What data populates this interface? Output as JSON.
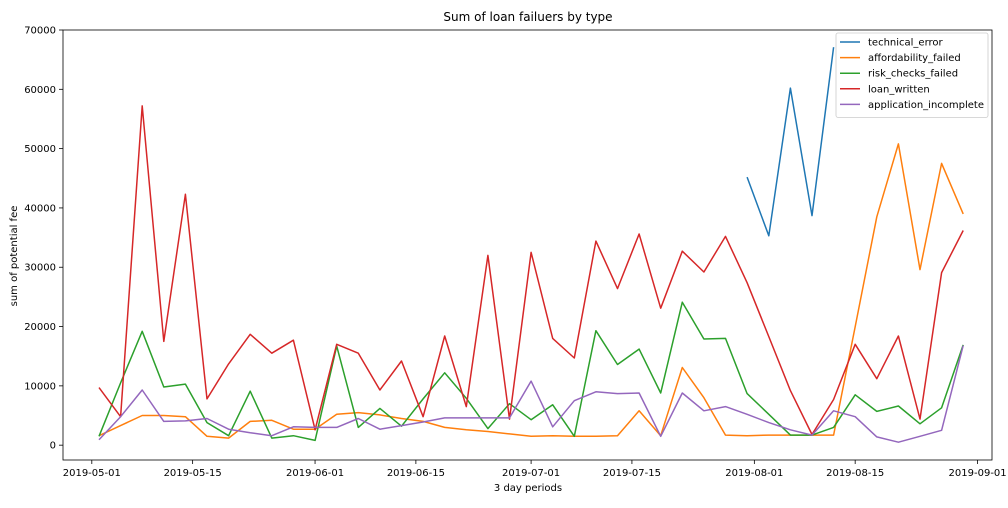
{
  "chart_data": {
    "type": "line",
    "title": "Sum of loan failuers by type",
    "xlabel": "3 day periods",
    "ylabel": "sum of potential fee",
    "ylim": [
      -2500,
      70000
    ],
    "xlim": [
      "2019-04-27",
      "2019-09-03"
    ],
    "yticks": [
      0,
      10000,
      20000,
      30000,
      40000,
      50000,
      60000,
      70000
    ],
    "xticks": [
      "2019-05-01",
      "2019-05-15",
      "2019-06-01",
      "2019-06-15",
      "2019-07-01",
      "2019-07-15",
      "2019-08-01",
      "2019-08-15",
      "2019-09-01"
    ],
    "legend_position": "top-right",
    "grid": false,
    "x": [
      "2019-05-02",
      "2019-05-05",
      "2019-05-08",
      "2019-05-11",
      "2019-05-14",
      "2019-05-17",
      "2019-05-20",
      "2019-05-23",
      "2019-05-26",
      "2019-05-29",
      "2019-06-01",
      "2019-06-04",
      "2019-06-07",
      "2019-06-10",
      "2019-06-13",
      "2019-06-16",
      "2019-06-19",
      "2019-06-22",
      "2019-06-25",
      "2019-06-28",
      "2019-07-01",
      "2019-07-04",
      "2019-07-07",
      "2019-07-10",
      "2019-07-13",
      "2019-07-16",
      "2019-07-19",
      "2019-07-22",
      "2019-07-25",
      "2019-07-28",
      "2019-07-31",
      "2019-08-03",
      "2019-08-06",
      "2019-08-09",
      "2019-08-12",
      "2019-08-15",
      "2019-08-18",
      "2019-08-21",
      "2019-08-24",
      "2019-08-27",
      "2019-08-30"
    ],
    "series": [
      {
        "name": "technical_error",
        "color": "#1f77b4",
        "values": [
          null,
          null,
          null,
          null,
          null,
          null,
          null,
          null,
          null,
          null,
          null,
          null,
          null,
          null,
          null,
          null,
          null,
          null,
          null,
          null,
          null,
          null,
          null,
          null,
          null,
          null,
          null,
          null,
          null,
          null,
          45200,
          35300,
          60200,
          38700,
          67100,
          null,
          null,
          null,
          null,
          null,
          null
        ]
      },
      {
        "name": "affordability_failed",
        "color": "#ff7f0e",
        "values": [
          1600,
          3300,
          5000,
          5000,
          4800,
          1500,
          1200,
          4000,
          4200,
          2700,
          2700,
          5200,
          5500,
          5100,
          4500,
          4000,
          3000,
          2600,
          2300,
          1900,
          1500,
          1600,
          1500,
          1500,
          1600,
          5800,
          1600,
          13100,
          8000,
          1700,
          1600,
          1700,
          1700,
          1700,
          1700,
          20000,
          38500,
          50800,
          29600,
          47500,
          39000
        ]
      },
      {
        "name": "risk_checks_failed",
        "color": "#2ca02c",
        "values": [
          1500,
          10500,
          19200,
          9800,
          10300,
          3800,
          1600,
          9100,
          1200,
          1600,
          800,
          16700,
          3000,
          6200,
          3200,
          7800,
          12200,
          7900,
          2800,
          7000,
          4300,
          6800,
          1500,
          19300,
          13600,
          16200,
          8800,
          24100,
          17900,
          18000,
          8700,
          5200,
          1700,
          1700,
          3000,
          8500,
          5700,
          6600,
          3600,
          6300,
          16900
        ]
      },
      {
        "name": "loan_written",
        "color": "#d62728",
        "values": [
          9700,
          4800,
          57200,
          17500,
          42300,
          7800,
          13700,
          18700,
          15500,
          17700,
          2600,
          17000,
          15500,
          9300,
          14200,
          4800,
          18400,
          6500,
          32000,
          4400,
          32500,
          18000,
          14700,
          34400,
          26400,
          35600,
          23100,
          32700,
          29200,
          35200,
          27400,
          18300,
          9200,
          1800,
          7700,
          17000,
          11200,
          18400,
          4400,
          29100,
          36200
        ]
      },
      {
        "name": "application_incomplete",
        "color": "#9467bd",
        "values": [
          900,
          4800,
          9300,
          4000,
          4100,
          4500,
          2700,
          2100,
          1600,
          3100,
          3000,
          3000,
          4500,
          2700,
          3300,
          3900,
          4600,
          4600,
          4600,
          4600,
          10800,
          3100,
          7500,
          9000,
          8700,
          8800,
          1500,
          8800,
          5800,
          6500,
          5200,
          3800,
          2600,
          1700,
          5800,
          4800,
          1400,
          500,
          1500,
          2500,
          16800
        ]
      }
    ]
  }
}
